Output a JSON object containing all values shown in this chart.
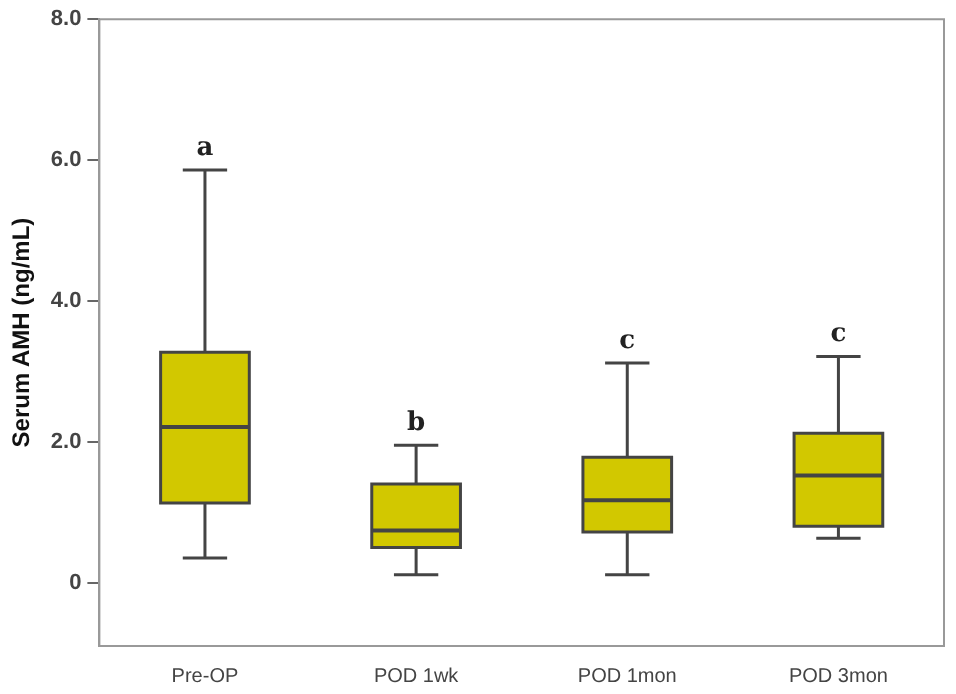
{
  "chart_data": {
    "type": "box",
    "ylabel": "Serum AMH (ng/mL)",
    "categories": [
      "Pre-OP",
      "POD 1wk",
      "POD 1mon",
      "POD 3mon"
    ],
    "boxes": [
      {
        "low": 0.35,
        "q1": 1.13,
        "median": 2.21,
        "q3": 3.27,
        "high": 5.86
      },
      {
        "low": 0.11,
        "q1": 0.5,
        "median": 0.74,
        "q3": 1.4,
        "high": 1.95
      },
      {
        "low": 0.11,
        "q1": 0.72,
        "median": 1.17,
        "q3": 1.78,
        "high": 3.12
      },
      {
        "low": 0.63,
        "q1": 0.8,
        "median": 1.52,
        "q3": 2.12,
        "high": 3.21
      }
    ],
    "color": "#d2c800",
    "ylim": [
      -0.9,
      8.0
    ],
    "yticks": [
      {
        "value": 0,
        "label": "0"
      },
      {
        "value": 2,
        "label": "2.0"
      },
      {
        "value": 4,
        "label": "4.0"
      },
      {
        "value": 6,
        "label": "6.0"
      },
      {
        "value": 8,
        "label": "8.0"
      }
    ],
    "grid": false,
    "annotations": [
      "a",
      "b",
      "c",
      "c"
    ]
  }
}
